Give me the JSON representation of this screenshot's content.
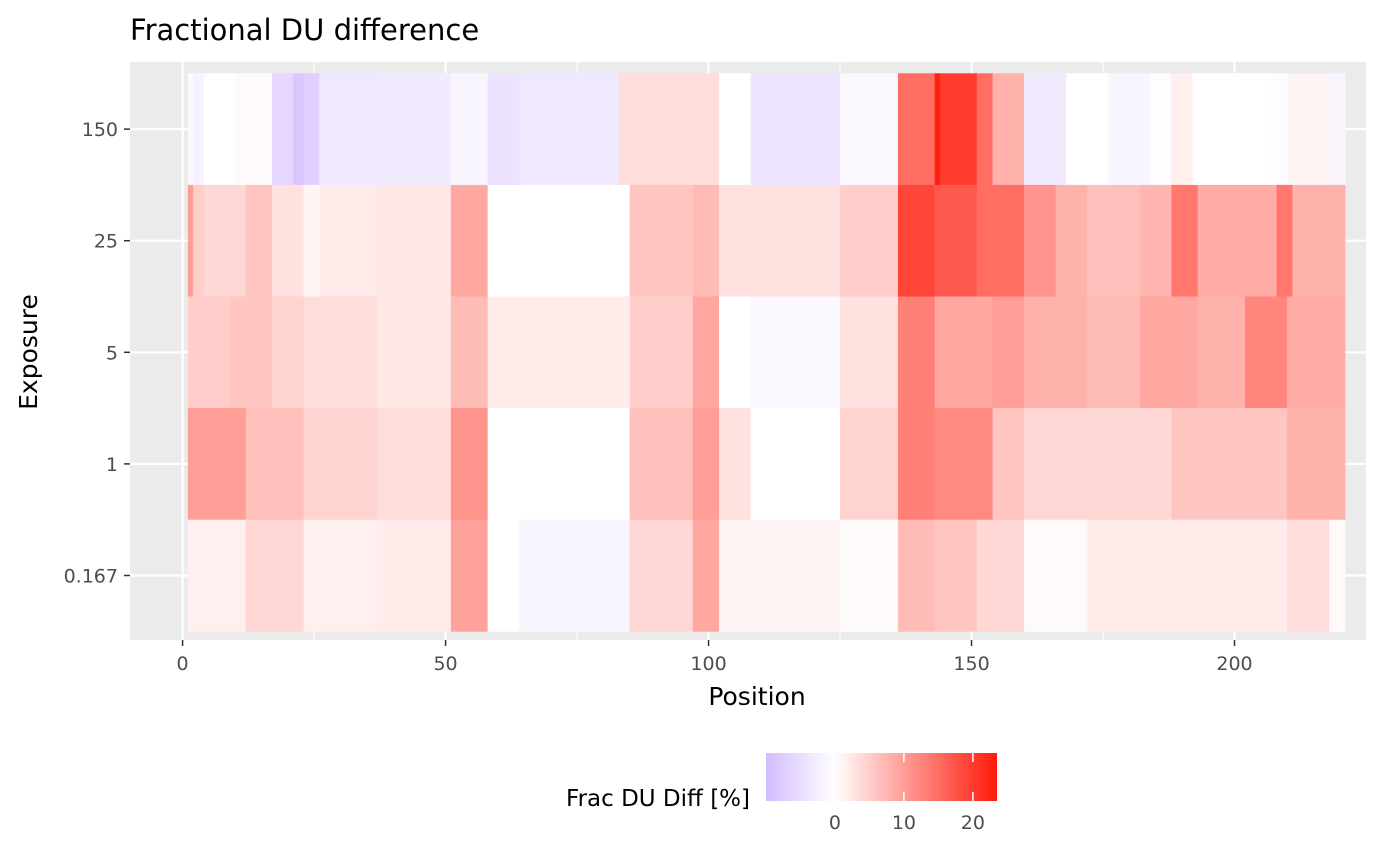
{
  "chart_data": {
    "type": "heatmap",
    "title": "Fractional DU difference",
    "xlabel": "Position",
    "ylabel": "Exposure",
    "xlim": [
      -10,
      225
    ],
    "x_ticks": [
      0,
      50,
      100,
      150,
      200
    ],
    "x_tick_labels": [
      "0",
      "50",
      "100",
      "150",
      "200"
    ],
    "y_categories": [
      "0.167",
      "1",
      "5",
      "25",
      "150"
    ],
    "grid": true,
    "legend": {
      "title": "Frac DU Diff [%]",
      "position": "bottom",
      "ticks": [
        0,
        10,
        20
      ],
      "tick_labels": [
        "0",
        "10",
        "20"
      ],
      "range": [
        -10,
        23.5
      ]
    },
    "color_scale": {
      "low": "#d4bcff",
      "mid": "#ffffff",
      "high": "#ff1a0a",
      "min": -10,
      "max": 23.5
    },
    "rows": [
      {
        "exposure": "150",
        "segments": [
          [
            1,
            2,
            -1.0
          ],
          [
            2,
            4,
            -2.0
          ],
          [
            4,
            10,
            0.0
          ],
          [
            10,
            17,
            0.5
          ],
          [
            17,
            21,
            -6.0
          ],
          [
            21,
            23,
            -8.5
          ],
          [
            23,
            26,
            -7.0
          ],
          [
            26,
            37,
            -3.5
          ],
          [
            37,
            51,
            -3.0
          ],
          [
            51,
            58,
            -1.5
          ],
          [
            58,
            64,
            -4.5
          ],
          [
            64,
            83,
            -3.5
          ],
          [
            83,
            102,
            3.5
          ],
          [
            102,
            108,
            0.0
          ],
          [
            108,
            125,
            -4.0
          ],
          [
            125,
            136,
            -1.0
          ],
          [
            136,
            143,
            15.0
          ],
          [
            143,
            144,
            23.0
          ],
          [
            144,
            151,
            20.0
          ],
          [
            151,
            154,
            15.0
          ],
          [
            154,
            160,
            8.0
          ],
          [
            160,
            168,
            -3.0
          ],
          [
            168,
            176,
            0.0
          ],
          [
            176,
            184,
            -1.5
          ],
          [
            184,
            188,
            -0.5
          ],
          [
            188,
            192,
            1.5
          ],
          [
            192,
            206,
            0.0
          ],
          [
            206,
            210,
            -0.5
          ],
          [
            210,
            218,
            1.0
          ],
          [
            218,
            221,
            -1.5
          ]
        ]
      },
      {
        "exposure": "25",
        "segments": [
          [
            1,
            2,
            10.0
          ],
          [
            2,
            4,
            5.0
          ],
          [
            4,
            12,
            4.0
          ],
          [
            12,
            17,
            6.0
          ],
          [
            17,
            23,
            3.0
          ],
          [
            23,
            26,
            1.0
          ],
          [
            26,
            37,
            2.0
          ],
          [
            37,
            51,
            2.5
          ],
          [
            51,
            58,
            9.0
          ],
          [
            58,
            85,
            0.0
          ],
          [
            85,
            97,
            6.0
          ],
          [
            97,
            102,
            7.0
          ],
          [
            102,
            125,
            3.0
          ],
          [
            125,
            136,
            5.0
          ],
          [
            136,
            143,
            19.0
          ],
          [
            143,
            151,
            17.0
          ],
          [
            151,
            160,
            15.0
          ],
          [
            160,
            166,
            11.0
          ],
          [
            166,
            172,
            8.0
          ],
          [
            172,
            182,
            6.5
          ],
          [
            182,
            188,
            7.5
          ],
          [
            188,
            193,
            14.0
          ],
          [
            193,
            208,
            8.5
          ],
          [
            208,
            211,
            14.0
          ],
          [
            211,
            221,
            8.0
          ]
        ]
      },
      {
        "exposure": "5",
        "segments": [
          [
            1,
            2,
            5.0
          ],
          [
            2,
            9,
            5.0
          ],
          [
            9,
            17,
            6.0
          ],
          [
            17,
            23,
            4.5
          ],
          [
            23,
            37,
            3.5
          ],
          [
            37,
            51,
            2.5
          ],
          [
            51,
            58,
            7.0
          ],
          [
            58,
            85,
            2.0
          ],
          [
            85,
            97,
            5.0
          ],
          [
            97,
            102,
            9.0
          ],
          [
            102,
            108,
            0.0
          ],
          [
            108,
            125,
            -1.0
          ],
          [
            125,
            136,
            3.0
          ],
          [
            136,
            143,
            13.0
          ],
          [
            143,
            154,
            9.0
          ],
          [
            154,
            160,
            10.0
          ],
          [
            160,
            172,
            8.0
          ],
          [
            172,
            182,
            7.0
          ],
          [
            182,
            193,
            9.0
          ],
          [
            193,
            202,
            8.0
          ],
          [
            202,
            210,
            12.5
          ],
          [
            210,
            221,
            8.5
          ]
        ]
      },
      {
        "exposure": "1",
        "segments": [
          [
            1,
            12,
            10.0
          ],
          [
            12,
            23,
            6.5
          ],
          [
            23,
            37,
            4.5
          ],
          [
            37,
            51,
            3.5
          ],
          [
            51,
            58,
            11.0
          ],
          [
            58,
            85,
            0.0
          ],
          [
            85,
            97,
            6.5
          ],
          [
            97,
            102,
            10.0
          ],
          [
            102,
            108,
            3.0
          ],
          [
            108,
            125,
            0.0
          ],
          [
            125,
            136,
            4.5
          ],
          [
            136,
            143,
            13.0
          ],
          [
            143,
            154,
            12.0
          ],
          [
            154,
            160,
            6.0
          ],
          [
            160,
            188,
            4.0
          ],
          [
            188,
            210,
            6.0
          ],
          [
            210,
            221,
            8.0
          ]
        ]
      },
      {
        "exposure": "0.167",
        "segments": [
          [
            1,
            12,
            1.5
          ],
          [
            12,
            23,
            4.0
          ],
          [
            23,
            37,
            1.5
          ],
          [
            37,
            51,
            2.0
          ],
          [
            51,
            58,
            9.5
          ],
          [
            58,
            64,
            0.0
          ],
          [
            64,
            85,
            -1.5
          ],
          [
            85,
            97,
            4.0
          ],
          [
            97,
            102,
            9.0
          ],
          [
            102,
            125,
            1.0
          ],
          [
            125,
            136,
            0.5
          ],
          [
            136,
            143,
            7.0
          ],
          [
            143,
            151,
            6.0
          ],
          [
            151,
            160,
            4.0
          ],
          [
            160,
            172,
            0.5
          ],
          [
            172,
            210,
            2.0
          ],
          [
            210,
            218,
            3.5
          ],
          [
            218,
            221,
            0.5
          ]
        ]
      }
    ]
  }
}
